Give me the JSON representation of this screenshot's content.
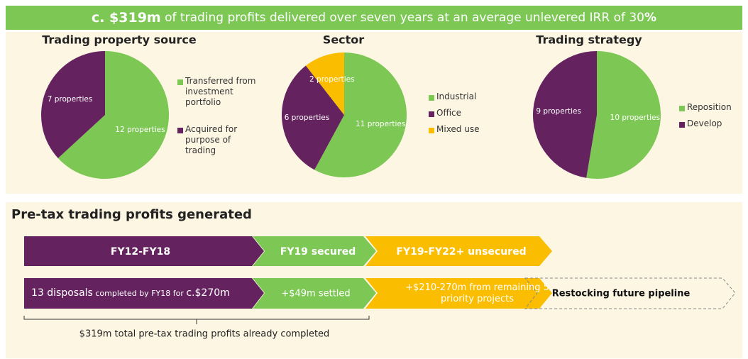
{
  "banner": {
    "parts": [
      "c. $319m",
      " of trading profits delivered over seven years at an average unlevered IRR of 30",
      "%"
    ]
  },
  "chart_data": [
    {
      "type": "pie",
      "title": "Trading property source",
      "categories": [
        "Transferred from investment portfolio",
        "Acquired for purpose of trading"
      ],
      "values": [
        12,
        7
      ],
      "value_labels": [
        "12 properties",
        "7 properties"
      ],
      "colors": [
        "#7dc855",
        "#64235f"
      ]
    },
    {
      "type": "pie",
      "title": "Sector",
      "categories": [
        "Industrial",
        "Office",
        "Mixed use"
      ],
      "values": [
        11,
        6,
        2
      ],
      "value_labels": [
        "11 properties",
        "6 properties",
        "2 properties"
      ],
      "colors": [
        "#7dc855",
        "#64235f",
        "#fbbd00"
      ]
    },
    {
      "type": "pie",
      "title": "Trading strategy",
      "categories": [
        "Reposition",
        "Develop"
      ],
      "values": [
        10,
        9
      ],
      "value_labels": [
        "10 properties",
        "9 properties"
      ],
      "colors": [
        "#7dc855",
        "#64235f"
      ]
    }
  ],
  "process": {
    "title": "Pre-tax trading profits generated",
    "phases": [
      "FY12-FY18",
      "FY19 secured",
      "FY19-FY22+ unsecured"
    ],
    "details": [
      [
        "13 disposals",
        " completed by FY18 for ",
        "c.$270m"
      ],
      "+$49m settled",
      "+$210-270m from remaining 5 priority projects",
      "Restocking future pipeline"
    ],
    "note": "$319m total pre-tax trading profits already completed"
  }
}
